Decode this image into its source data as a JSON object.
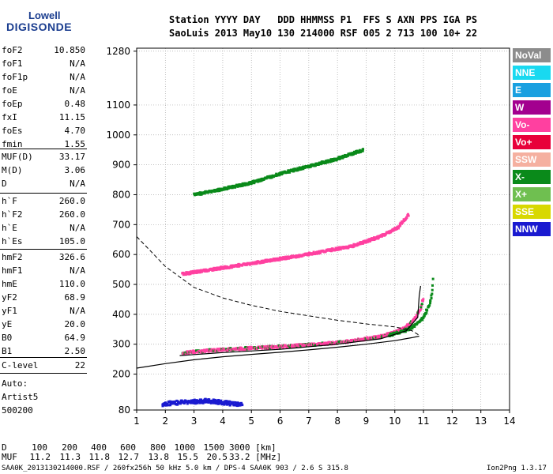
{
  "logo": {
    "line1": "Lowell",
    "line2": "DIGISONDE"
  },
  "header": {
    "line1": "Station YYYY DAY   DDD HHMMSS P1  FFS S AXN PPS IGA PS",
    "line2": "SaoLuis 2013 May10 130 214000 RSF 005 2 713 100 10+ 22"
  },
  "params_group1": [
    {
      "name": "foF2",
      "value": "10.850"
    },
    {
      "name": "foF1",
      "value": "N/A"
    },
    {
      "name": "foF1p",
      "value": "N/A"
    },
    {
      "name": "foE",
      "value": "N/A"
    },
    {
      "name": "foEp",
      "value": "0.48"
    },
    {
      "name": "fxI",
      "value": "11.15"
    },
    {
      "name": "foEs",
      "value": "4.70"
    },
    {
      "name": "fmin",
      "value": "1.55"
    }
  ],
  "params_group2": [
    {
      "name": "MUF(D)",
      "value": "33.17"
    },
    {
      "name": "M(D)",
      "value": "3.06"
    },
    {
      "name": "D",
      "value": "N/A"
    }
  ],
  "params_group3": [
    {
      "name": "h`F",
      "value": "260.0"
    },
    {
      "name": "h`F2",
      "value": "260.0"
    },
    {
      "name": "h`E",
      "value": "N/A"
    },
    {
      "name": "h`Es",
      "value": "105.0"
    }
  ],
  "params_group4": [
    {
      "name": "hmF2",
      "value": "326.6"
    },
    {
      "name": "hmF1",
      "value": "N/A"
    },
    {
      "name": "hmE",
      "value": "110.0"
    },
    {
      "name": "yF2",
      "value": "68.9"
    },
    {
      "name": "yF1",
      "value": "N/A"
    },
    {
      "name": "yE",
      "value": "20.0"
    },
    {
      "name": "B0",
      "value": "64.9"
    },
    {
      "name": "B1",
      "value": "2.50"
    }
  ],
  "params_group5": [
    {
      "name": "C-level",
      "value": "22"
    }
  ],
  "autoscale": {
    "line1": "Auto:",
    "line2": "Artist5",
    "line3": "500200"
  },
  "legend": [
    {
      "label": "NoVal",
      "color": "#8c8c8c"
    },
    {
      "label": "NNE",
      "color": "#19d9f0"
    },
    {
      "label": "E",
      "color": "#1aa0e0"
    },
    {
      "label": "W",
      "color": "#a3008f"
    },
    {
      "label": "Vo-",
      "color": "#ff40a0"
    },
    {
      "label": "Vo+",
      "color": "#e8003a"
    },
    {
      "label": "SSW",
      "color": "#f5b0a0"
    },
    {
      "label": "X-",
      "color": "#0a8a1a"
    },
    {
      "label": "X+",
      "color": "#6fbf50"
    },
    {
      "label": "SSE",
      "color": "#d8d800"
    },
    {
      "label": "NNW",
      "color": "#1a1ad0"
    }
  ],
  "footer": {
    "d_label": "D",
    "d_values": [
      "100",
      "200",
      "400",
      "600",
      "800",
      "1000",
      "1500",
      "3000 [km]"
    ],
    "muf_label": "MUF",
    "muf_values": [
      "11.2",
      "11.3",
      "11.8",
      "12.7",
      "13.8",
      "15.5",
      "20.5",
      "33.2 [MHz]"
    ],
    "file_info": "SAA0K_2013130214000.RSF / 260fx256h 50 kHz 5.0 km / DPS-4 SAA0K 903 / 2.6 S 315.8 E",
    "software": "Ion2Png 1.3.17"
  },
  "chart_data": {
    "type": "scatter",
    "title": "",
    "xlabel": "",
    "ylabel": "",
    "xlim": [
      1,
      14
    ],
    "ylim": [
      80,
      1290
    ],
    "x_ticks": [
      1,
      2,
      3,
      4,
      5,
      6,
      7,
      8,
      9,
      10,
      11,
      12,
      13,
      14
    ],
    "y_ticks": [
      80,
      200,
      300,
      400,
      500,
      600,
      700,
      800,
      900,
      1000,
      1100,
      1280
    ],
    "grid": true,
    "traces": [
      {
        "name": "F2 o-trace (1st hop)",
        "color": "#ff40a0",
        "points": [
          [
            2.6,
            270
          ],
          [
            3,
            275
          ],
          [
            4,
            282
          ],
          [
            5,
            287
          ],
          [
            6,
            292
          ],
          [
            7,
            298
          ],
          [
            8,
            305
          ],
          [
            9,
            318
          ],
          [
            9.6,
            328
          ],
          [
            10,
            340
          ],
          [
            10.4,
            358
          ],
          [
            10.7,
            385
          ],
          [
            10.9,
            420
          ],
          [
            11.0,
            460
          ]
        ]
      },
      {
        "name": "F2 x-trace (1st hop)",
        "color": "#0a8a1a",
        "points": [
          [
            9.8,
            330
          ],
          [
            10.3,
            343
          ],
          [
            10.7,
            362
          ],
          [
            11.0,
            390
          ],
          [
            11.2,
            430
          ],
          [
            11.3,
            470
          ],
          [
            11.35,
            540
          ]
        ]
      },
      {
        "name": "F2 2nd hop",
        "color": "#ff40a0",
        "points": [
          [
            2.6,
            535
          ],
          [
            3.5,
            548
          ],
          [
            4.5,
            563
          ],
          [
            5.5,
            578
          ],
          [
            6.5,
            593
          ],
          [
            7.5,
            610
          ],
          [
            8.5,
            628
          ],
          [
            9.5,
            660
          ],
          [
            10.1,
            690
          ],
          [
            10.5,
            735
          ]
        ]
      },
      {
        "name": "F2 3rd hop",
        "color": "#0a8a1a",
        "points": [
          [
            3,
            800
          ],
          [
            3.8,
            815
          ],
          [
            5,
            840
          ],
          [
            6,
            870
          ],
          [
            7,
            895
          ],
          [
            8,
            920
          ],
          [
            8.9,
            950
          ]
        ]
      },
      {
        "name": "Es",
        "color": "#1a1ad0",
        "points": [
          [
            1.9,
            100
          ],
          [
            2.5,
            105
          ],
          [
            3,
            108
          ],
          [
            3.5,
            110
          ],
          [
            4,
            105
          ],
          [
            4.5,
            100
          ],
          [
            4.7,
            98
          ]
        ]
      }
    ],
    "profile_fit": {
      "name": "fitted trace",
      "points": [
        [
          2.5,
          262
        ],
        [
          4,
          272
        ],
        [
          6,
          283
        ],
        [
          8,
          300
        ],
        [
          9.5,
          318
        ],
        [
          10.4,
          345
        ],
        [
          10.8,
          390
        ],
        [
          10.85,
          460
        ],
        [
          10.9,
          495
        ]
      ]
    },
    "true_height_profile": {
      "name": "true height",
      "points": [
        [
          1,
          220
        ],
        [
          2,
          235
        ],
        [
          3,
          248
        ],
        [
          4,
          258
        ],
        [
          5,
          266
        ],
        [
          6,
          273
        ],
        [
          7,
          281
        ],
        [
          8,
          290
        ],
        [
          9,
          300
        ],
        [
          10,
          312
        ],
        [
          10.6,
          322
        ],
        [
          10.85,
          327
        ]
      ]
    },
    "dashed_curve": {
      "name": "dashed curve",
      "points": [
        [
          1,
          660
        ],
        [
          1.5,
          610
        ],
        [
          2,
          560
        ],
        [
          2.5,
          525
        ],
        [
          3,
          490
        ],
        [
          4,
          455
        ],
        [
          5,
          430
        ],
        [
          6,
          410
        ],
        [
          7,
          395
        ],
        [
          8,
          380
        ],
        [
          9,
          368
        ],
        [
          10,
          358
        ],
        [
          10.6,
          345
        ],
        [
          10.85,
          330
        ]
      ]
    }
  }
}
